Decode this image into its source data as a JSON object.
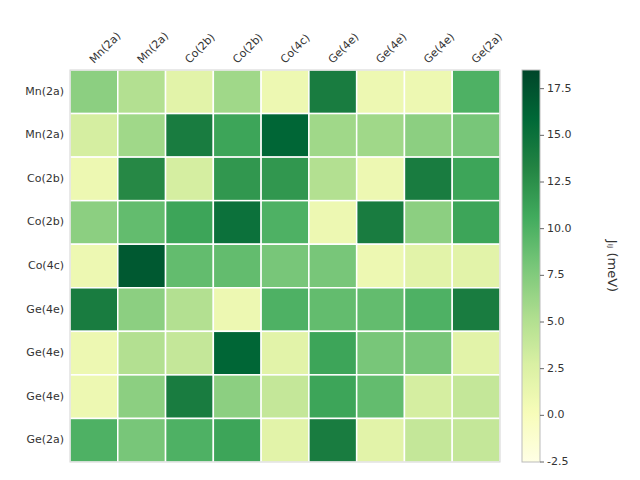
{
  "chart_data": {
    "type": "heatmap",
    "categories": [
      "Mn(2a)",
      "Mn(2a)",
      "Co(2b)",
      "Co(2b)",
      "Co(4c)",
      "Ge(4e)",
      "Ge(4e)",
      "Ge(4e)",
      "Ge(2a)"
    ],
    "rows": [
      "Mn(2a)",
      "Mn(2a)",
      "Co(2b)",
      "Co(2b)",
      "Co(4c)",
      "Ge(4e)",
      "Ge(4e)",
      "Ge(4e)",
      "Ge(2a)"
    ],
    "values": [
      [
        7,
        5,
        2,
        6,
        1,
        14,
        1,
        1,
        10
      ],
      [
        3,
        6,
        14,
        11,
        16,
        6,
        6,
        7,
        8
      ],
      [
        1,
        13,
        3,
        12,
        12,
        5,
        1,
        14,
        11
      ],
      [
        7,
        9,
        11,
        15,
        10,
        1,
        14,
        7,
        11
      ],
      [
        1,
        17,
        9,
        9,
        8,
        8,
        1,
        2,
        2
      ],
      [
        14,
        7,
        5,
        1,
        10,
        9,
        9,
        10,
        14
      ],
      [
        1,
        5,
        4,
        16,
        2,
        11,
        8,
        8,
        2
      ],
      [
        1,
        7,
        14,
        7,
        4,
        11,
        9,
        3,
        4
      ],
      [
        10,
        8,
        10,
        11,
        2,
        14,
        2,
        4,
        4
      ]
    ],
    "color": "YlGn",
    "color_range": [
      -2.5,
      18.5
    ],
    "color_ticks": [
      -2.5,
      {
        "value": 0,
        "label": "0.0"
      },
      2.5,
      {
        "value": 5,
        "label": "5.0"
      },
      7.5,
      {
        "value": 10,
        "label": "10.0"
      },
      12.5,
      {
        "value": 15,
        "label": "15.0"
      },
      17.5
    ],
    "color_label": "Jᵢⱼ (meV)",
    "grid": false
  }
}
